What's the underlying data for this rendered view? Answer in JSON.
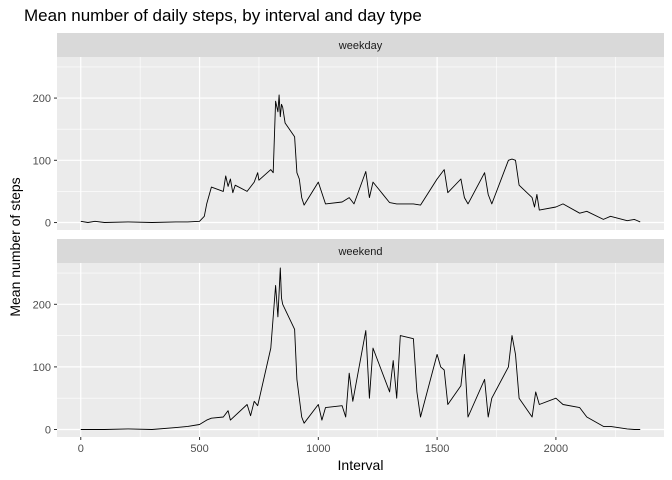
{
  "chart_data": {
    "type": "line",
    "title": "Mean number of daily steps, by interval and day type",
    "xlabel": "Interval",
    "ylabel": "Mean number of steps",
    "xlim": [
      -100,
      2455
    ],
    "ylim": [
      -12,
      266
    ],
    "x_ticks": [
      0,
      500,
      1000,
      1500,
      2000
    ],
    "y_ticks": [
      0,
      100,
      200
    ],
    "grid": true,
    "facets": [
      {
        "label": "weekday",
        "series": [
          {
            "x": [
              0,
              30,
              60,
              100,
              200,
              300,
              400,
              450,
              500,
              520,
              530,
              550,
              600,
              610,
              620,
              630,
              640,
              650,
              700,
              730,
              745,
              750,
              800,
              810,
              820,
              830,
              835,
              840,
              845,
              850,
              860,
              900,
              910,
              920,
              930,
              940,
              1000,
              1030,
              1100,
              1130,
              1150,
              1200,
              1215,
              1230,
              1300,
              1330,
              1400,
              1430,
              1500,
              1530,
              1545,
              1600,
              1615,
              1630,
              1700,
              1715,
              1730,
              1800,
              1815,
              1830,
              1845,
              1900,
              1910,
              1920,
              1930,
              2000,
              2030,
              2100,
              2130,
              2200,
              2230,
              2300,
              2330,
              2355
            ],
            "y": [
              2,
              0,
              2,
              0,
              1,
              0,
              1,
              1,
              2,
              10,
              30,
              57,
              50,
              75,
              58,
              70,
              48,
              60,
              50,
              65,
              80,
              68,
              85,
              80,
              195,
              178,
              205,
              170,
              190,
              185,
              160,
              138,
              80,
              70,
              40,
              28,
              65,
              30,
              33,
              40,
              30,
              82,
              40,
              65,
              32,
              30,
              30,
              28,
              70,
              85,
              48,
              70,
              40,
              30,
              80,
              45,
              30,
              100,
              102,
              100,
              60,
              40,
              25,
              45,
              20,
              25,
              30,
              15,
              18,
              5,
              10,
              3,
              5,
              1
            ]
          }
        ]
      },
      {
        "label": "weekend",
        "series": [
          {
            "x": [
              0,
              100,
              200,
              300,
              400,
              450,
              500,
              530,
              550,
              600,
              620,
              630,
              700,
              715,
              730,
              745,
              800,
              820,
              830,
              840,
              845,
              850,
              900,
              910,
              930,
              940,
              1000,
              1015,
              1030,
              1100,
              1115,
              1130,
              1145,
              1200,
              1215,
              1230,
              1300,
              1315,
              1330,
              1345,
              1400,
              1415,
              1430,
              1500,
              1515,
              1530,
              1545,
              1600,
              1615,
              1630,
              1700,
              1715,
              1730,
              1800,
              1815,
              1830,
              1845,
              1900,
              1915,
              1930,
              2000,
              2030,
              2100,
              2130,
              2200,
              2230,
              2300,
              2330,
              2355
            ],
            "y": [
              0,
              0,
              1,
              0,
              3,
              5,
              8,
              15,
              18,
              20,
              30,
              15,
              40,
              22,
              45,
              38,
              130,
              230,
              180,
              258,
              210,
              200,
              160,
              80,
              20,
              10,
              40,
              15,
              35,
              38,
              20,
              90,
              45,
              158,
              50,
              130,
              60,
              110,
              50,
              150,
              145,
              60,
              20,
              120,
              100,
              95,
              40,
              70,
              120,
              20,
              80,
              20,
              50,
              100,
              150,
              120,
              50,
              20,
              60,
              40,
              50,
              40,
              35,
              20,
              5,
              5,
              1,
              0,
              0
            ]
          }
        ]
      }
    ]
  }
}
